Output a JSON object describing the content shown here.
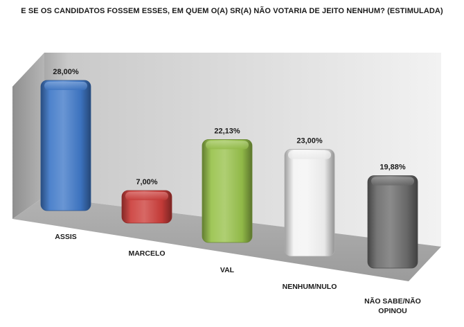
{
  "chart_data": {
    "type": "bar",
    "title": "E SE OS CANDIDATOS FOSSEM ESSES, EM QUEM O(A) SR(A) NÃO VOTARIA DE JEITO NENHUM? (ESTIMULADA)",
    "categories": [
      "ASSIS",
      "MARCELO",
      "VAL",
      "NENHUM/NULO",
      "NÃO SABE/NÃO OPINOU"
    ],
    "values": [
      28.0,
      7.0,
      22.13,
      23.0,
      19.88
    ],
    "labels": [
      "28,00%",
      "7,00%",
      "22,13%",
      "23,00%",
      "19,88%"
    ],
    "colors": [
      "#3f78c8",
      "#cc3d3a",
      "#98c24b",
      "#f4f4f4",
      "#6a6a6a"
    ],
    "ylim": [
      0,
      30
    ],
    "grid": false,
    "legend": "none",
    "style": "3d-cylinder-bars"
  }
}
